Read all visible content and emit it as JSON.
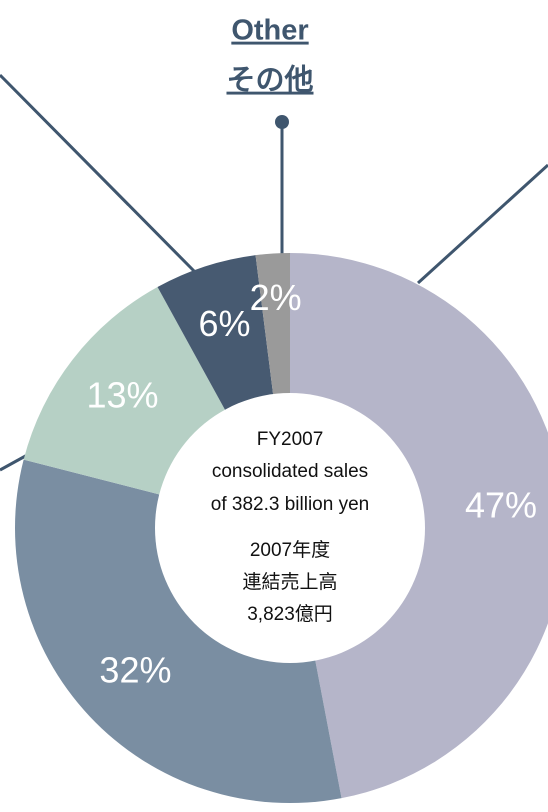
{
  "chart_data": {
    "type": "donut",
    "categories": [
      null,
      null,
      null,
      null,
      "Other"
    ],
    "category_subtitles": [
      null,
      null,
      null,
      null,
      "その他"
    ],
    "values": [
      47,
      32,
      13,
      6,
      2
    ],
    "value_labels": [
      "47%",
      "32%",
      "13%",
      "6%",
      "2%"
    ],
    "colors": [
      "#b5b5c9",
      "#7a8ea2",
      "#b6d0c5",
      "#475a71",
      "#9a9a9a"
    ],
    "center_text": [
      "FY2007",
      "consolidated sales",
      "of 382.3 billion yen",
      "2007年度",
      "連結売上高",
      "3,823億円"
    ]
  }
}
